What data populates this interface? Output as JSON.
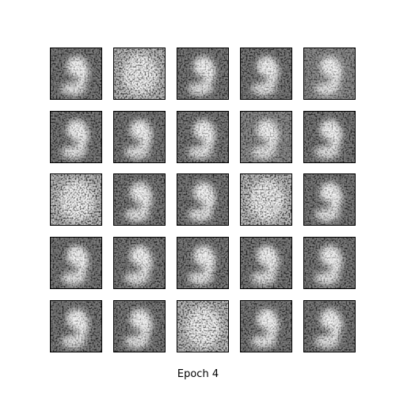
{
  "caption": "Epoch 4"
}
